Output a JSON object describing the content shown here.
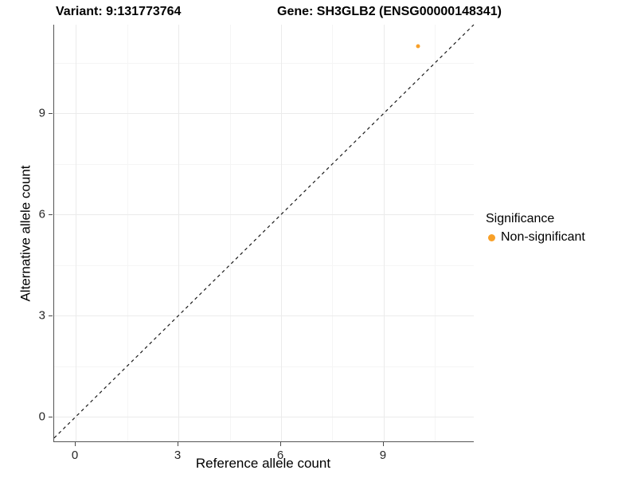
{
  "titles": {
    "variant": "Variant: 9:131773764",
    "gene": "Gene: SH3GLB2 (ENSG00000148341)"
  },
  "chart_data": {
    "type": "scatter",
    "xlabel": "Reference allele count",
    "ylabel": "Alternative allele count",
    "xlim": [
      -0.63,
      11.63
    ],
    "ylim": [
      -0.73,
      11.63
    ],
    "x_ticks": [
      0,
      3,
      6,
      9
    ],
    "y_ticks": [
      0,
      3,
      6,
      9
    ],
    "x_minor_ticks": [
      1.5,
      4.5,
      7.5,
      10.5
    ],
    "y_minor_ticks": [
      1.5,
      4.5,
      7.5,
      10.5
    ],
    "grid": true,
    "series": [
      {
        "name": "Non-significant",
        "color": "#F8A028",
        "points": [
          {
            "x": 10,
            "y": 11
          }
        ]
      }
    ],
    "identity_line": {
      "slope": 1,
      "intercept": 0,
      "style": "dashed",
      "color": "#1a1a1a"
    },
    "legend": {
      "position": "right",
      "title": "Significance",
      "items": [
        {
          "label": "Non-significant",
          "color": "#F8A028"
        }
      ]
    }
  },
  "colors": {
    "point_orange": "#F8A028",
    "grid_major": "#ebebeb",
    "grid_minor": "#f5f5f5",
    "axis_line": "#545454"
  }
}
